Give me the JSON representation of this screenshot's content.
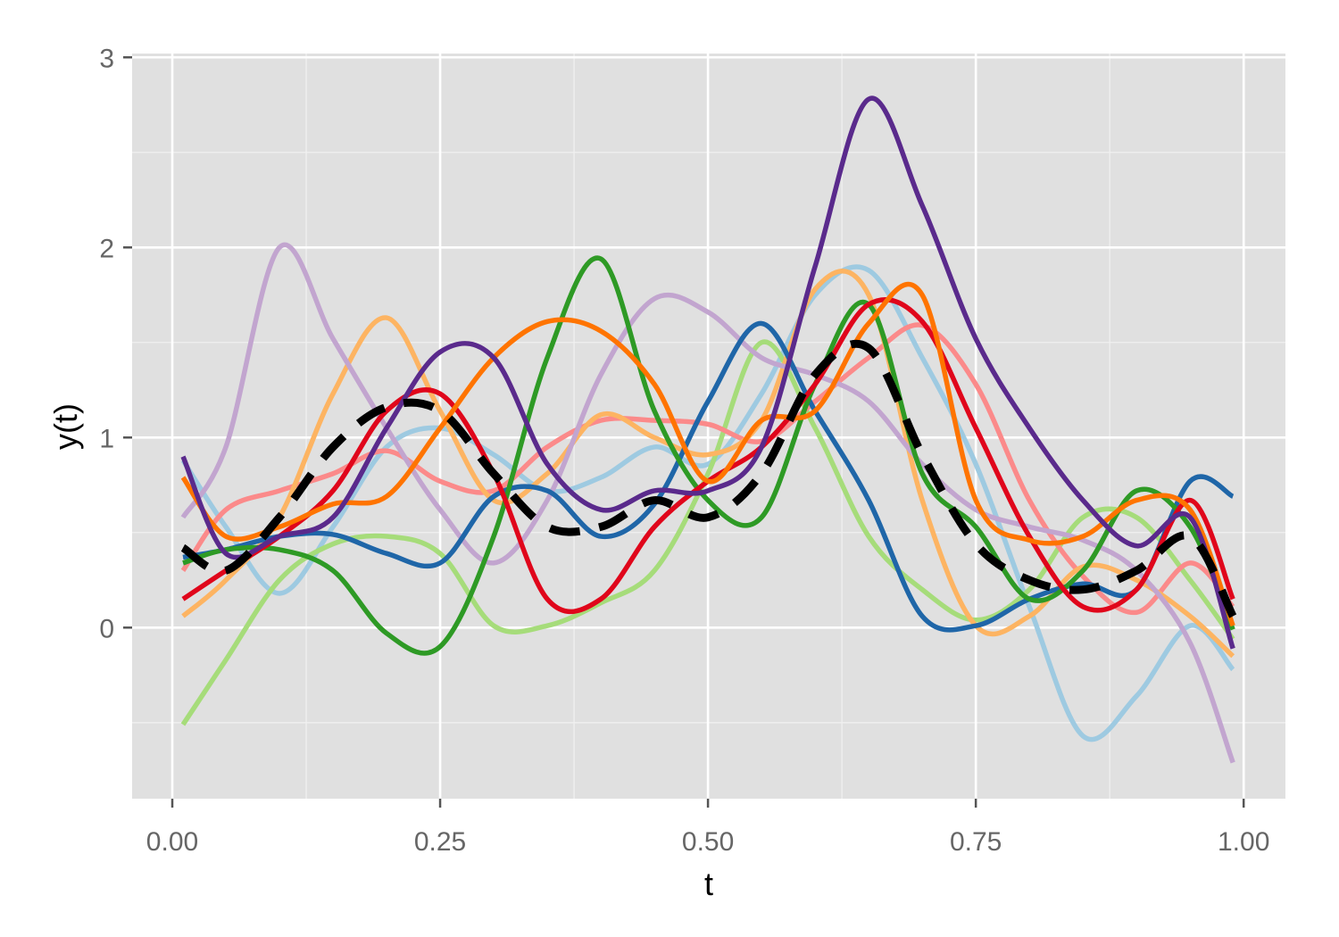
{
  "chart_data": {
    "type": "line",
    "title": "",
    "xlabel": "t",
    "ylabel": "y(t)",
    "xlim": [
      -0.0375,
      1.039
    ],
    "ylim": [
      -0.9,
      3.02
    ],
    "grid": true,
    "legend": "none",
    "x_ticks": [
      0,
      0.25,
      0.5,
      0.75,
      1
    ],
    "x_tick_labels": [
      "0.00",
      "0.25",
      "0.50",
      "0.75",
      "1.00"
    ],
    "y_ticks": [
      0,
      1,
      2,
      3
    ],
    "y_tick_labels": [
      "0",
      "1",
      "2",
      "3"
    ],
    "x": [
      0.01,
      0.05,
      0.1,
      0.15,
      0.2,
      0.25,
      0.3,
      0.35,
      0.4,
      0.45,
      0.5,
      0.55,
      0.6,
      0.65,
      0.7,
      0.75,
      0.8,
      0.85,
      0.9,
      0.95,
      0.99
    ],
    "series": [
      {
        "name": "curve-light-blue",
        "color": "#9ecae1",
        "values": [
          0.88,
          0.53,
          0.18,
          0.53,
          0.95,
          1.05,
          0.91,
          0.72,
          0.79,
          0.95,
          0.86,
          1.23,
          1.75,
          1.88,
          1.42,
          0.86,
          0.11,
          -0.57,
          -0.36,
          0.01,
          -0.22
        ]
      },
      {
        "name": "curve-light-green",
        "color": "#a6dc7a",
        "values": [
          -0.51,
          -0.17,
          0.25,
          0.44,
          0.48,
          0.39,
          0.01,
          0.01,
          0.13,
          0.3,
          0.81,
          1.5,
          1.05,
          0.48,
          0.2,
          0.04,
          0.2,
          0.58,
          0.58,
          0.25,
          -0.06
        ]
      },
      {
        "name": "curve-pink",
        "color": "#fb8a8a",
        "values": [
          0.3,
          0.62,
          0.72,
          0.81,
          0.93,
          0.77,
          0.72,
          0.95,
          1.09,
          1.09,
          1.07,
          0.98,
          1.19,
          1.42,
          1.59,
          1.28,
          0.67,
          0.27,
          0.08,
          0.34,
          0.11
        ]
      },
      {
        "name": "curve-light-orange",
        "color": "#fdb462",
        "values": [
          0.06,
          0.25,
          0.58,
          1.23,
          1.63,
          1.14,
          0.67,
          0.81,
          1.12,
          1.0,
          0.91,
          1.09,
          1.78,
          1.75,
          0.67,
          0.01,
          0.06,
          0.32,
          0.25,
          0.06,
          -0.15
        ]
      },
      {
        "name": "curve-lavender",
        "color": "#c2a5cf",
        "values": [
          0.58,
          0.95,
          2.0,
          1.52,
          1.05,
          0.62,
          0.34,
          0.67,
          1.33,
          1.73,
          1.66,
          1.42,
          1.33,
          1.19,
          0.86,
          0.62,
          0.53,
          0.46,
          0.3,
          -0.08,
          -0.71
        ]
      },
      {
        "name": "curve-dark-blue",
        "color": "#1f66a8",
        "values": [
          0.37,
          0.41,
          0.48,
          0.49,
          0.39,
          0.34,
          0.69,
          0.72,
          0.48,
          0.65,
          1.19,
          1.6,
          1.14,
          0.67,
          0.06,
          0.01,
          0.15,
          0.23,
          0.2,
          0.77,
          0.69
        ]
      },
      {
        "name": "curve-dark-green",
        "color": "#2e9a25",
        "values": [
          0.34,
          0.41,
          0.41,
          0.3,
          -0.03,
          -0.1,
          0.48,
          1.42,
          1.94,
          1.14,
          0.67,
          0.58,
          1.28,
          1.7,
          0.81,
          0.53,
          0.15,
          0.3,
          0.72,
          0.53,
          -0.01
        ]
      },
      {
        "name": "curve-red",
        "color": "#e0061b",
        "values": [
          0.15,
          0.3,
          0.48,
          0.72,
          1.14,
          1.23,
          0.81,
          0.15,
          0.15,
          0.53,
          0.77,
          0.95,
          1.28,
          1.7,
          1.61,
          1.05,
          0.48,
          0.11,
          0.2,
          0.67,
          0.15
        ]
      },
      {
        "name": "curve-dark-orange",
        "color": "#ff7400",
        "values": [
          0.79,
          0.48,
          0.53,
          0.65,
          0.69,
          1.05,
          1.42,
          1.61,
          1.56,
          1.28,
          0.77,
          1.09,
          1.14,
          1.6,
          1.75,
          0.67,
          0.46,
          0.48,
          0.67,
          0.62,
          0.01
        ]
      },
      {
        "name": "curve-purple",
        "color": "#5a2a8c",
        "values": [
          0.9,
          0.39,
          0.48,
          0.58,
          1.05,
          1.45,
          1.42,
          0.86,
          0.62,
          0.72,
          0.72,
          0.95,
          1.9,
          2.78,
          2.22,
          1.52,
          1.05,
          0.67,
          0.43,
          0.58,
          -0.11
        ]
      },
      {
        "name": "mean-curve",
        "color": "#000000",
        "dashed": true,
        "values": [
          0.42,
          0.3,
          0.58,
          0.95,
          1.16,
          1.14,
          0.81,
          0.53,
          0.53,
          0.67,
          0.58,
          0.81,
          1.33,
          1.47,
          0.91,
          0.44,
          0.25,
          0.2,
          0.3,
          0.48,
          0.06
        ]
      }
    ]
  }
}
